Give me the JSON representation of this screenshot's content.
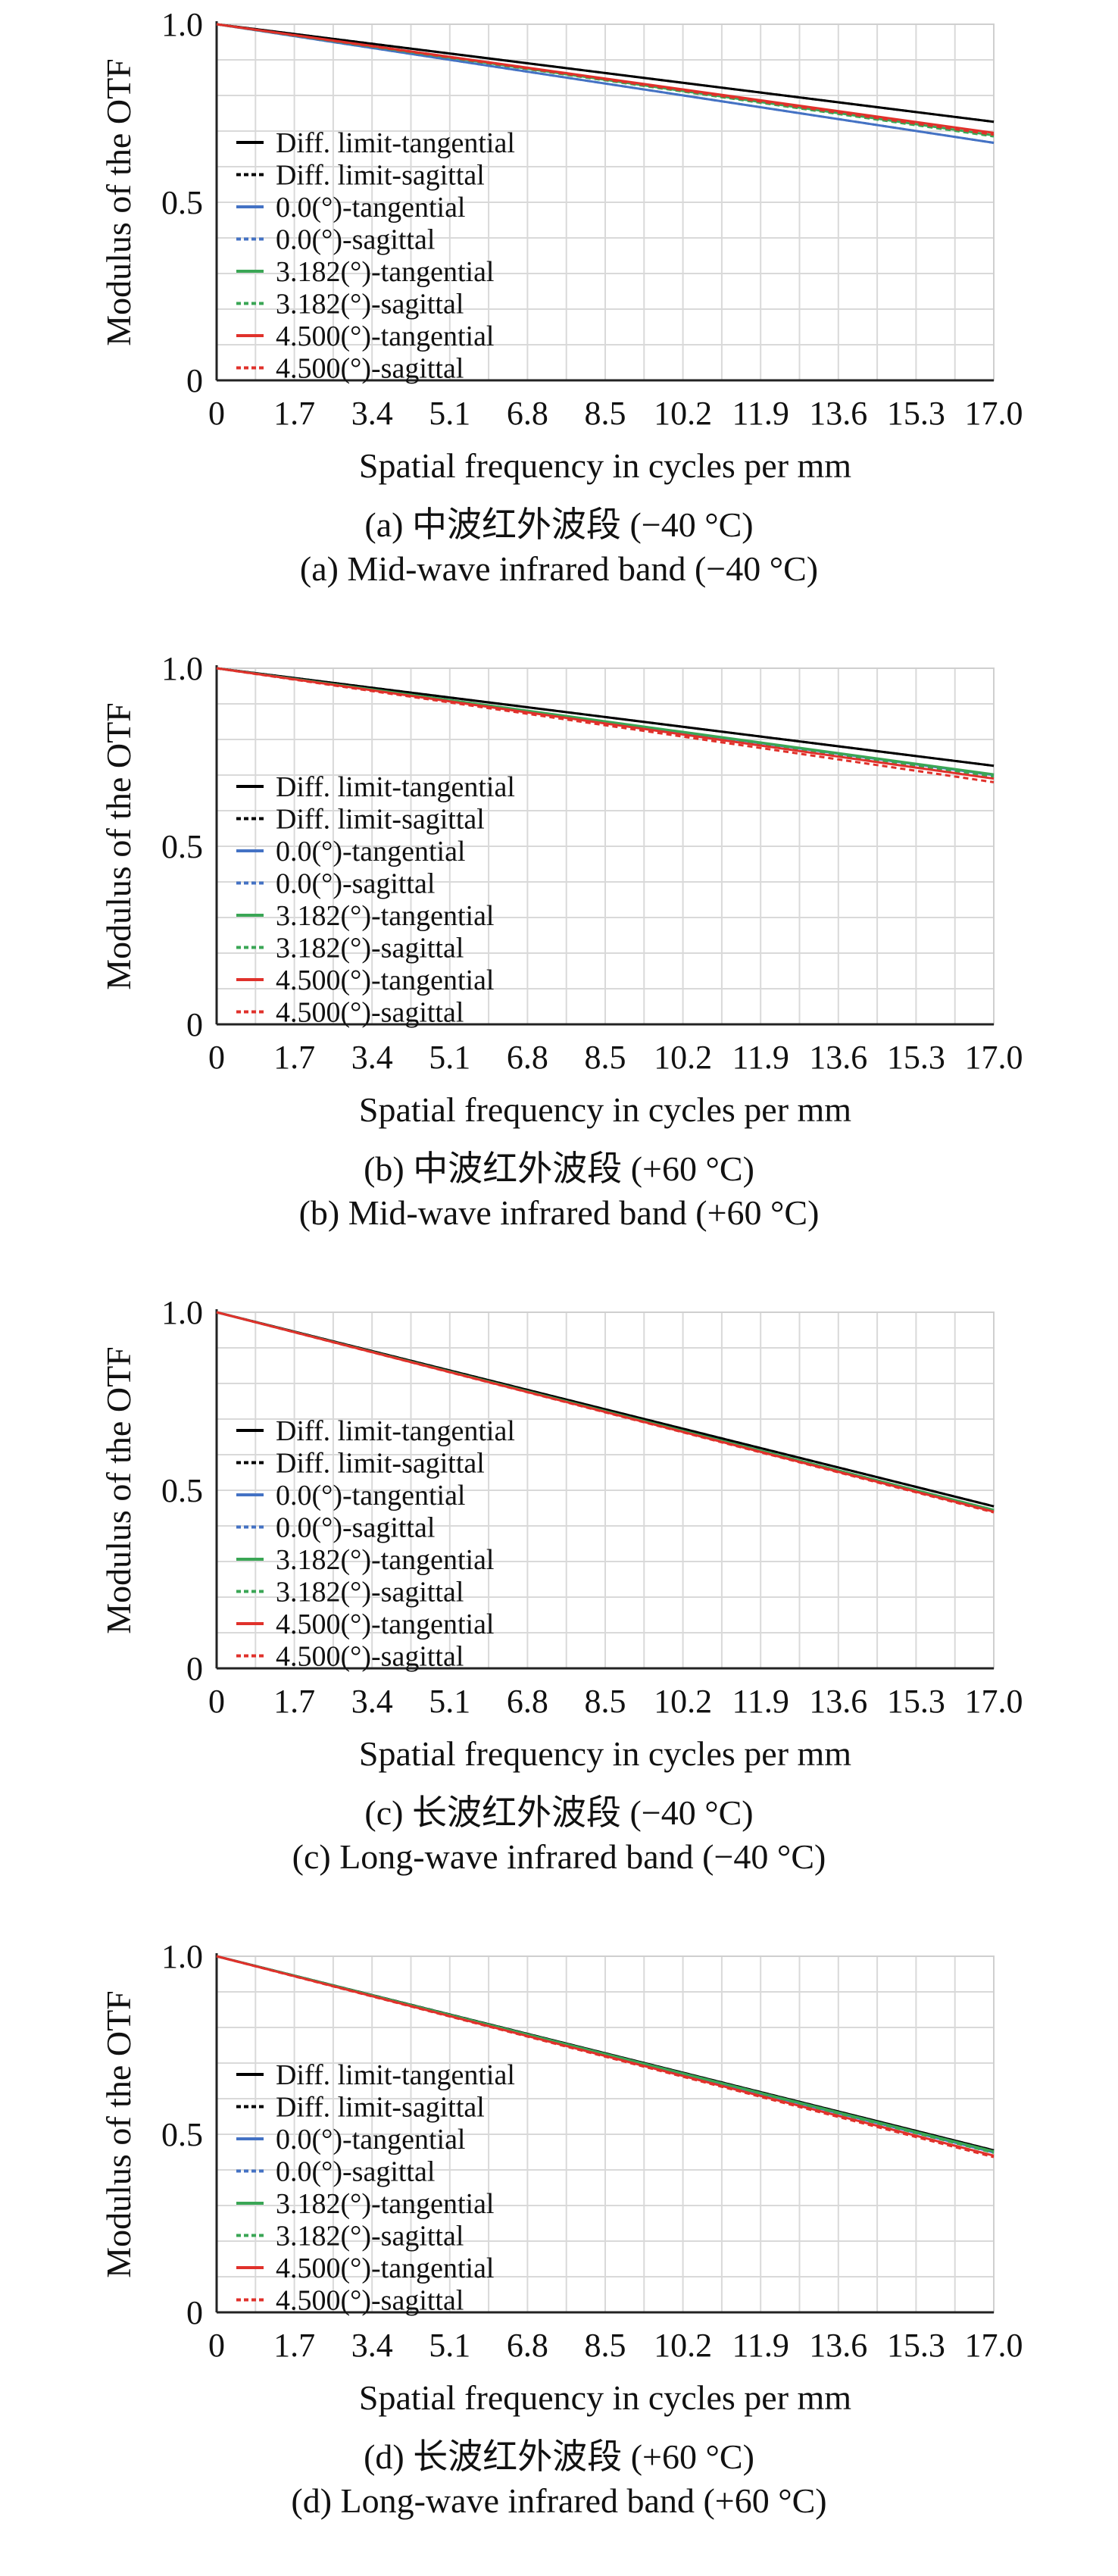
{
  "chart_data": [
    {
      "type": "line",
      "panel": "a",
      "xlabel": "Spatial frequency in cycles per mm",
      "ylabel": "Modulus of the OTF",
      "x_ticks": [
        "0",
        "1.7",
        "3.4",
        "5.1",
        "6.8",
        "8.5",
        "10.2",
        "11.9",
        "13.6",
        "15.3",
        "17.0"
      ],
      "y_ticks": [
        "0",
        "0.5",
        "1.0"
      ],
      "xlim": [
        0,
        17.0
      ],
      "ylim": [
        0,
        1.0
      ],
      "grid": true,
      "legend_placement": "left",
      "caption_zh": "(a) 中波红外波段 (−40 °C)",
      "caption_en": "(a) Mid-wave infrared band (−40 °C)",
      "x": [
        0,
        17.0
      ],
      "series": [
        {
          "name": "Diff. limit-tangential",
          "color": "#000000",
          "dash": false,
          "values": [
            1.0,
            0.726
          ]
        },
        {
          "name": "Diff. limit-sagittal",
          "color": "#000000",
          "dash": true,
          "values": [
            1.0,
            0.726
          ]
        },
        {
          "name": "0.0(°)-tangential",
          "color": "#4472c4",
          "dash": false,
          "values": [
            1.0,
            0.667
          ]
        },
        {
          "name": "0.0(°)-sagittal",
          "color": "#4472c4",
          "dash": true,
          "values": [
            1.0,
            0.667
          ]
        },
        {
          "name": "3.182(°)-tangential",
          "color": "#3aa655",
          "dash": false,
          "values": [
            1.0,
            0.688
          ]
        },
        {
          "name": "3.182(°)-sagittal",
          "color": "#3aa655",
          "dash": true,
          "values": [
            1.0,
            0.685
          ]
        },
        {
          "name": "4.500(°)-tangential",
          "color": "#e0312b",
          "dash": false,
          "values": [
            1.0,
            0.695
          ]
        },
        {
          "name": "4.500(°)-sagittal",
          "color": "#e0312b",
          "dash": true,
          "values": [
            1.0,
            0.69
          ]
        }
      ]
    },
    {
      "type": "line",
      "panel": "b",
      "xlabel": "Spatial frequency in cycles per mm",
      "ylabel": "Modulus of the OTF",
      "x_ticks": [
        "0",
        "1.7",
        "3.4",
        "5.1",
        "6.8",
        "8.5",
        "10.2",
        "11.9",
        "13.6",
        "15.3",
        "17.0"
      ],
      "y_ticks": [
        "0",
        "0.5",
        "1.0"
      ],
      "xlim": [
        0,
        17.0
      ],
      "ylim": [
        0,
        1.0
      ],
      "grid": true,
      "legend_placement": "left",
      "caption_zh": "(b) 中波红外波段 (+60 °C)",
      "caption_en": "(b) Mid-wave infrared band (+60 °C)",
      "x": [
        0,
        17.0
      ],
      "series": [
        {
          "name": "Diff. limit-tangential",
          "color": "#000000",
          "dash": false,
          "values": [
            1.0,
            0.726
          ]
        },
        {
          "name": "Diff. limit-sagittal",
          "color": "#000000",
          "dash": true,
          "values": [
            1.0,
            0.726
          ]
        },
        {
          "name": "0.0(°)-tangential",
          "color": "#4472c4",
          "dash": false,
          "values": [
            1.0,
            0.7
          ]
        },
        {
          "name": "0.0(°)-sagittal",
          "color": "#4472c4",
          "dash": true,
          "values": [
            1.0,
            0.7
          ]
        },
        {
          "name": "3.182(°)-tangential",
          "color": "#3aa655",
          "dash": false,
          "values": [
            1.0,
            0.702
          ]
        },
        {
          "name": "3.182(°)-sagittal",
          "color": "#3aa655",
          "dash": true,
          "values": [
            1.0,
            0.696
          ]
        },
        {
          "name": "4.500(°)-tangential",
          "color": "#e0312b",
          "dash": false,
          "values": [
            1.0,
            0.69
          ]
        },
        {
          "name": "4.500(°)-sagittal",
          "color": "#e0312b",
          "dash": true,
          "values": [
            1.0,
            0.68
          ]
        }
      ]
    },
    {
      "type": "line",
      "panel": "c",
      "xlabel": "Spatial frequency in cycles per mm",
      "ylabel": "Modulus of the OTF",
      "x_ticks": [
        "0",
        "1.7",
        "3.4",
        "5.1",
        "6.8",
        "8.5",
        "10.2",
        "11.9",
        "13.6",
        "15.3",
        "17.0"
      ],
      "y_ticks": [
        "0",
        "0.5",
        "1.0"
      ],
      "xlim": [
        0,
        17.0
      ],
      "ylim": [
        0,
        1.0
      ],
      "grid": true,
      "legend_placement": "left",
      "caption_zh": "(c) 长波红外波段 (−40 °C)",
      "caption_en": "(c) Long-wave infrared band (−40 °C)",
      "x": [
        0,
        17.0
      ],
      "series": [
        {
          "name": "Diff. limit-tangential",
          "color": "#000000",
          "dash": false,
          "values": [
            1.0,
            0.455
          ]
        },
        {
          "name": "Diff. limit-sagittal",
          "color": "#000000",
          "dash": true,
          "values": [
            1.0,
            0.455
          ]
        },
        {
          "name": "0.0(°)-tangential",
          "color": "#4472c4",
          "dash": false,
          "values": [
            1.0,
            0.443
          ]
        },
        {
          "name": "0.0(°)-sagittal",
          "color": "#4472c4",
          "dash": true,
          "values": [
            1.0,
            0.443
          ]
        },
        {
          "name": "3.182(°)-tangential",
          "color": "#3aa655",
          "dash": false,
          "values": [
            1.0,
            0.445
          ]
        },
        {
          "name": "3.182(°)-sagittal",
          "color": "#3aa655",
          "dash": true,
          "values": [
            1.0,
            0.442
          ]
        },
        {
          "name": "4.500(°)-tangential",
          "color": "#e0312b",
          "dash": false,
          "values": [
            1.0,
            0.44
          ]
        },
        {
          "name": "4.500(°)-sagittal",
          "color": "#e0312b",
          "dash": true,
          "values": [
            1.0,
            0.438
          ]
        }
      ]
    },
    {
      "type": "line",
      "panel": "d",
      "xlabel": "Spatial frequency in cycles per mm",
      "ylabel": "Modulus of the OTF",
      "x_ticks": [
        "0",
        "1.7",
        "3.4",
        "5.1",
        "6.8",
        "8.5",
        "10.2",
        "11.9",
        "13.6",
        "15.3",
        "17.0"
      ],
      "y_ticks": [
        "0",
        "0.5",
        "1.0"
      ],
      "xlim": [
        0,
        17.0
      ],
      "ylim": [
        0,
        1.0
      ],
      "grid": true,
      "legend_placement": "left",
      "caption_zh": "(d) 长波红外波段 (+60 °C)",
      "caption_en": "(d) Long-wave infrared band (+60 °C)",
      "x": [
        0,
        17.0
      ],
      "series": [
        {
          "name": "Diff. limit-tangential",
          "color": "#000000",
          "dash": false,
          "values": [
            1.0,
            0.455
          ]
        },
        {
          "name": "Diff. limit-sagittal",
          "color": "#000000",
          "dash": true,
          "values": [
            1.0,
            0.455
          ]
        },
        {
          "name": "0.0(°)-tangential",
          "color": "#4472c4",
          "dash": false,
          "values": [
            1.0,
            0.449
          ]
        },
        {
          "name": "0.0(°)-sagittal",
          "color": "#4472c4",
          "dash": true,
          "values": [
            1.0,
            0.449
          ]
        },
        {
          "name": "3.182(°)-tangential",
          "color": "#3aa655",
          "dash": false,
          "values": [
            1.0,
            0.452
          ]
        },
        {
          "name": "3.182(°)-sagittal",
          "color": "#3aa655",
          "dash": true,
          "values": [
            1.0,
            0.448
          ]
        },
        {
          "name": "4.500(°)-tangential",
          "color": "#e0312b",
          "dash": false,
          "values": [
            1.0,
            0.44
          ]
        },
        {
          "name": "4.500(°)-sagittal",
          "color": "#e0312b",
          "dash": true,
          "values": [
            1.0,
            0.436
          ]
        }
      ]
    }
  ]
}
